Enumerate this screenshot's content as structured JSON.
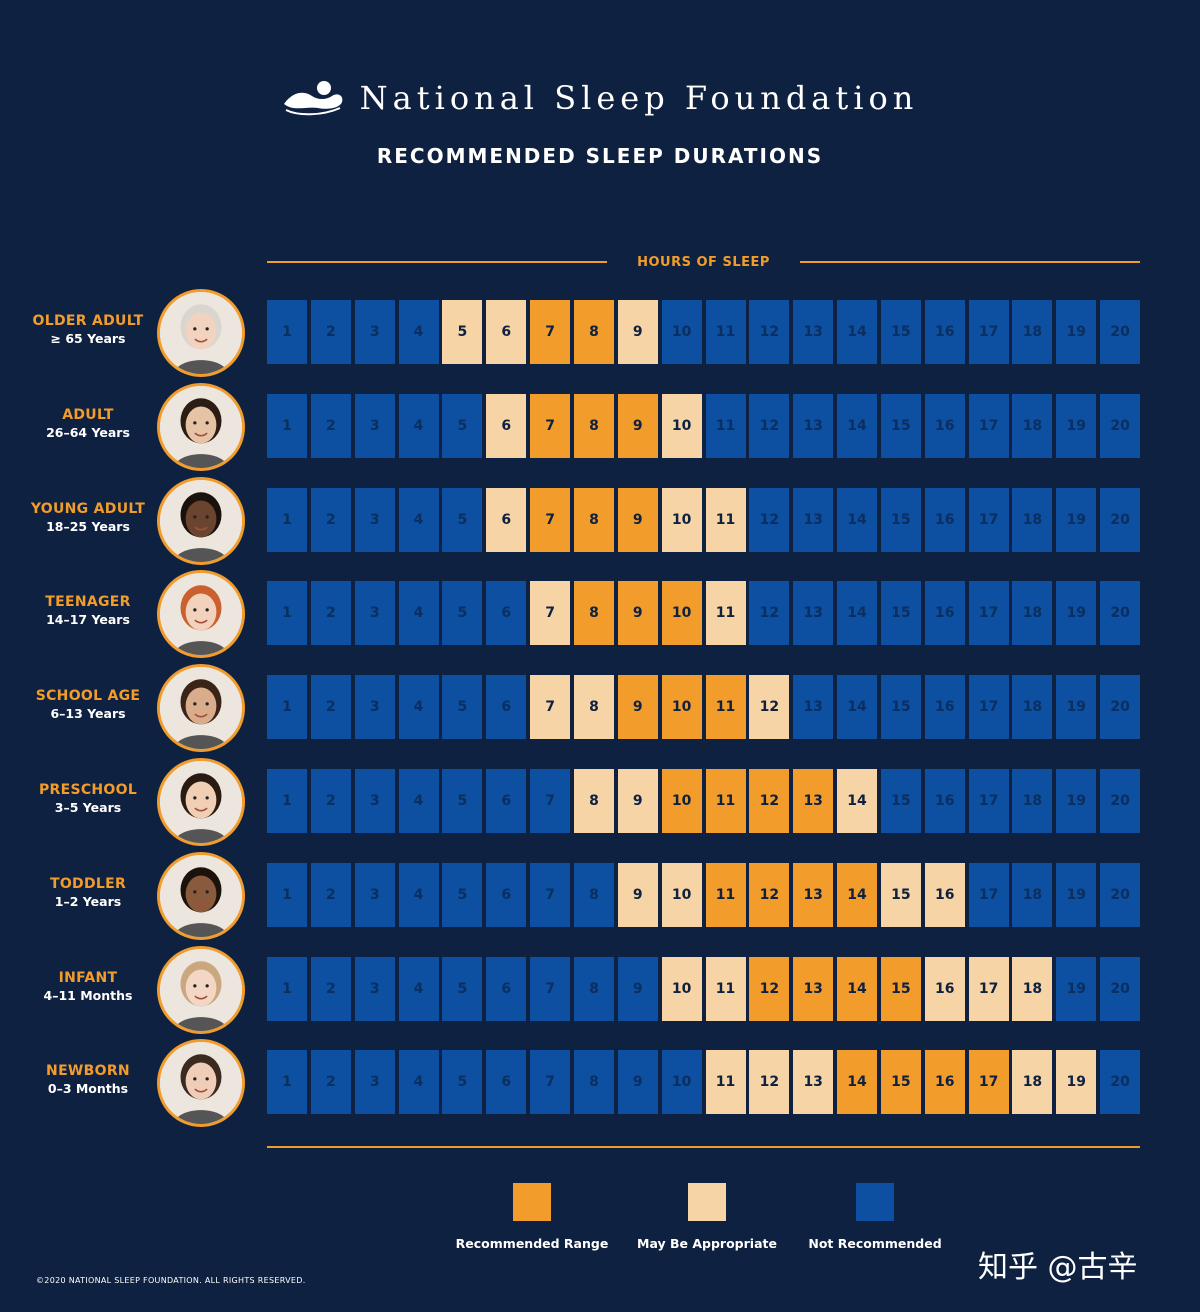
{
  "header": {
    "brand": "National Sleep Foundation",
    "title": "RECOMMENDED SLEEP DURATIONS"
  },
  "colors": {
    "background": "#0f2140",
    "recommended": "#f29c2b",
    "may_be_appropriate": "#f6d4a6",
    "not_recommended": "#0d4fa0"
  },
  "chart_data": {
    "type": "table",
    "title": "RECOMMENDED SLEEP DURATIONS",
    "xlabel": "HOURS OF SLEEP",
    "hours": [
      1,
      2,
      3,
      4,
      5,
      6,
      7,
      8,
      9,
      10,
      11,
      12,
      13,
      14,
      15,
      16,
      17,
      18,
      19,
      20
    ],
    "rows": [
      {
        "group": "OLDER ADULT",
        "range": "≥ 65 Years",
        "recommended": [
          7,
          8
        ],
        "may_be_appropriate": [
          5,
          6,
          9
        ]
      },
      {
        "group": "ADULT",
        "range": "26–64 Years",
        "recommended": [
          7,
          8,
          9
        ],
        "may_be_appropriate": [
          6,
          10
        ]
      },
      {
        "group": "YOUNG ADULT",
        "range": "18–25 Years",
        "recommended": [
          7,
          8,
          9
        ],
        "may_be_appropriate": [
          6,
          10,
          11
        ]
      },
      {
        "group": "TEENAGER",
        "range": "14–17 Years",
        "recommended": [
          8,
          9,
          10
        ],
        "may_be_appropriate": [
          7,
          11
        ]
      },
      {
        "group": "SCHOOL AGE",
        "range": "6–13 Years",
        "recommended": [
          9,
          10,
          11
        ],
        "may_be_appropriate": [
          7,
          8,
          12
        ]
      },
      {
        "group": "PRESCHOOL",
        "range": "3–5 Years",
        "recommended": [
          10,
          11,
          12,
          13
        ],
        "may_be_appropriate": [
          8,
          9,
          14
        ]
      },
      {
        "group": "TODDLER",
        "range": "1–2 Years",
        "recommended": [
          11,
          12,
          13,
          14
        ],
        "may_be_appropriate": [
          9,
          10,
          15,
          16
        ]
      },
      {
        "group": "INFANT",
        "range": "4–11 Months",
        "recommended": [
          12,
          13,
          14,
          15
        ],
        "may_be_appropriate": [
          10,
          11,
          16,
          17,
          18
        ]
      },
      {
        "group": "NEWBORN",
        "range": "0–3 Months",
        "recommended": [
          14,
          15,
          16,
          17
        ],
        "may_be_appropriate": [
          11,
          12,
          13,
          18,
          19
        ]
      }
    ]
  },
  "legend": [
    {
      "label": "Recommended Range",
      "color": "#f29c2b"
    },
    {
      "label": "May Be Appropriate",
      "color": "#f6d4a6"
    },
    {
      "label": "Not Recommended",
      "color": "#0d4fa0"
    }
  ],
  "footer": {
    "copyright": "©2020 NATIONAL SLEEP FOUNDATION. ALL RIGHTS RESERVED.",
    "watermark": "知乎 @古辛"
  }
}
